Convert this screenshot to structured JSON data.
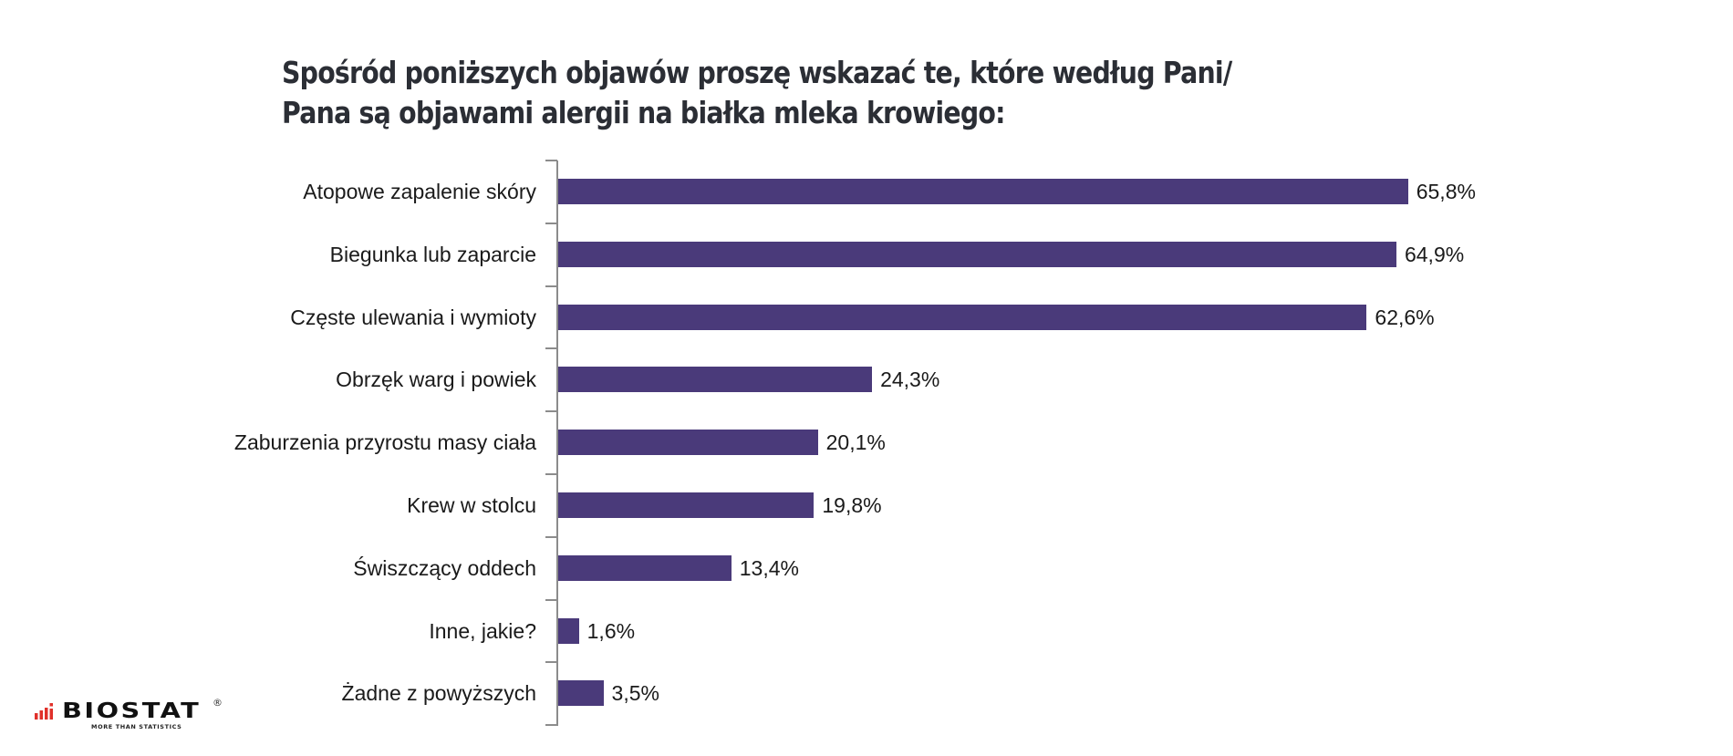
{
  "title": {
    "line1": "Spośród poniższych objawów proszę wskazać te, które według Pani/",
    "line2": "Pana są objawami alergii na białka mleka krowiego:"
  },
  "colors": {
    "bar": "#4a3a7a",
    "title": "#2b2e35",
    "axis": "#8c8c8c",
    "logo_accent": "#e0302a"
  },
  "logo": {
    "name": "BIOSTAT",
    "registered": "®",
    "tagline": "MORE THAN STATISTICS",
    "icon": "bar-chart-logo-icon"
  },
  "chart_data": {
    "type": "bar",
    "orientation": "horizontal",
    "title": "Spośród poniższych objawów proszę wskazać te, które według Pani/Pana są objawami alergii na białka mleka krowiego:",
    "xlabel": "",
    "ylabel": "",
    "grid": false,
    "legend": null,
    "xlim": [
      0,
      70
    ],
    "unit": "%",
    "categories": [
      "Atopowe zapalenie skóry",
      "Biegunka lub zaparcie",
      "Częste ulewania i wymioty",
      "Obrzęk warg i powiek",
      "Zaburzenia przyrostu masy ciała",
      "Krew w stolcu",
      "Świszczący oddech",
      "Inne, jakie?",
      "Żadne z powyższych"
    ],
    "values": [
      65.8,
      64.9,
      62.6,
      24.3,
      20.1,
      19.8,
      13.4,
      1.6,
      3.5
    ],
    "value_labels": [
      "65,8%",
      "64,9%",
      "62,6%",
      "24,3%",
      "20,1%",
      "19,8%",
      "13,4%",
      "1,6%",
      "3,5%"
    ]
  }
}
